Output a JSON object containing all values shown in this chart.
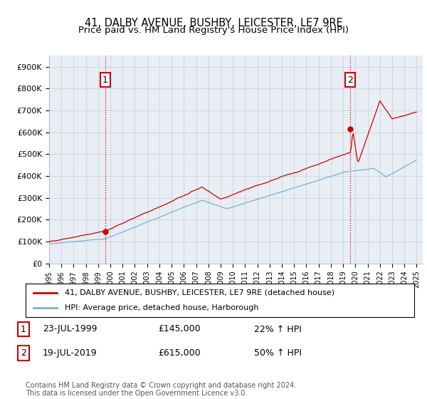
{
  "title": "41, DALBY AVENUE, BUSHBY, LEICESTER, LE7 9RE",
  "subtitle": "Price paid vs. HM Land Registry's House Price Index (HPI)",
  "ylim": [
    0,
    950000
  ],
  "yticks": [
    0,
    100000,
    200000,
    300000,
    400000,
    500000,
    600000,
    700000,
    800000,
    900000
  ],
  "ytick_labels": [
    "£0",
    "£100K",
    "£200K",
    "£300K",
    "£400K",
    "£500K",
    "£600K",
    "£700K",
    "£800K",
    "£900K"
  ],
  "legend_line1": "41, DALBY AVENUE, BUSHBY, LEICESTER, LE7 9RE (detached house)",
  "legend_line2": "HPI: Average price, detached house, Harborough",
  "line1_color": "#cc0000",
  "line2_color": "#7bafd4",
  "annotation1_label": "1",
  "annotation1_date": "23-JUL-1999",
  "annotation1_price": "£145,000",
  "annotation1_hpi": "22% ↑ HPI",
  "annotation2_label": "2",
  "annotation2_date": "19-JUL-2019",
  "annotation2_price": "£615,000",
  "annotation2_hpi": "50% ↑ HPI",
  "footer": "Contains HM Land Registry data © Crown copyright and database right 2024.\nThis data is licensed under the Open Government Licence v3.0.",
  "background_color": "#ffffff",
  "grid_color": "#cccccc",
  "chart_bg": "#e8eef5"
}
